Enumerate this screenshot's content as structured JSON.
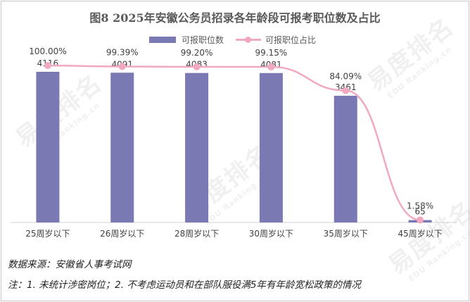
{
  "title": "图8  2025年安徽公务员招录各年龄段可报考职位数及占比",
  "legend": {
    "bar_label": "可报职位数",
    "line_label": "可报职位占比"
  },
  "colors": {
    "bar": "#7b79b3",
    "line": "#f1a9c2"
  },
  "chart_data": {
    "type": "bar",
    "categories": [
      "25周岁以下",
      "26周岁以下",
      "28周岁以下",
      "30周岁以下",
      "35周岁以下",
      "45周岁以下"
    ],
    "series": [
      {
        "name": "可报职位数",
        "type": "bar",
        "values": [
          4116,
          4091,
          4083,
          4081,
          3461,
          65
        ],
        "labels": [
          "4116",
          "4091",
          "4083",
          "4081",
          "3461",
          "65"
        ]
      },
      {
        "name": "可报职位占比",
        "type": "line",
        "values": [
          100.0,
          99.39,
          99.2,
          99.15,
          84.09,
          1.58
        ],
        "labels": [
          "100.00%",
          "99.39%",
          "99.20%",
          "99.15%",
          "84.09%",
          "1.58%"
        ]
      }
    ],
    "bar_ylim": [
      0,
      4500
    ],
    "line_ylim": [
      0,
      105
    ],
    "legend_position": "top",
    "grid": false
  },
  "footer": {
    "source": "数据来源：安徽省人事考试网",
    "note": "注：1. 未统计涉密岗位；2. 不考虑运动员和在部队服役满5年有年龄宽松政策的情况"
  },
  "watermark": {
    "text": "易度排名",
    "sub": "EDU Ranking.cn"
  }
}
